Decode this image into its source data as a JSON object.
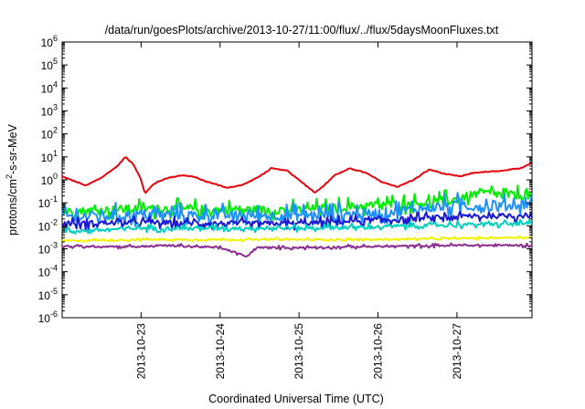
{
  "chart_data": {
    "type": "line",
    "title": "/data/run/goesPlots/archive/2013-10-27/11:00/flux/../flux/5daysMoonFluxes.txt",
    "xlabel": "Coordinated Universal Time (UTC)",
    "ylabel": {
      "base": "protons/cm",
      "sup": "2",
      "rest": "-s-sr-MeV"
    },
    "yscale": "log",
    "ylim": [
      -6,
      6
    ],
    "xlim": [
      0,
      5.95
    ],
    "y_ticks": [
      {
        "exp": 6,
        "base": "10",
        "sup": "6"
      },
      {
        "exp": 5,
        "base": "10",
        "sup": "5"
      },
      {
        "exp": 4,
        "base": "10",
        "sup": "4"
      },
      {
        "exp": 3,
        "base": "10",
        "sup": "3"
      },
      {
        "exp": 2,
        "base": "10",
        "sup": "2"
      },
      {
        "exp": 1,
        "base": "10",
        "sup": "1"
      },
      {
        "exp": 0,
        "base": "10",
        "sup": "0"
      },
      {
        "exp": -1,
        "base": "10",
        "sup": "-1"
      },
      {
        "exp": -2,
        "base": "10",
        "sup": "-2"
      },
      {
        "exp": -3,
        "base": "10",
        "sup": "-3"
      },
      {
        "exp": -4,
        "base": "10",
        "sup": "-4"
      },
      {
        "exp": -5,
        "base": "10",
        "sup": "-5"
      },
      {
        "exp": -6,
        "base": "10",
        "sup": "-6"
      }
    ],
    "x_ticks": [
      {
        "day": 1,
        "label": "2013-10-23"
      },
      {
        "day": 2,
        "label": "2013-10-24"
      },
      {
        "day": 3,
        "label": "2013-10-25"
      },
      {
        "day": 4,
        "label": "2013-10-26"
      },
      {
        "day": 5,
        "label": "2013-10-27"
      }
    ],
    "grid": false,
    "legend": "none",
    "series": [
      {
        "color": "#e8000b",
        "noise": 0.02,
        "points": [
          [
            0,
            0.15
          ],
          [
            0.15,
            -0.05
          ],
          [
            0.3,
            -0.25
          ],
          [
            0.5,
            0.1
          ],
          [
            0.7,
            0.6
          ],
          [
            0.8,
            1.0
          ],
          [
            0.9,
            0.7
          ],
          [
            1.0,
            0.0
          ],
          [
            1.05,
            -0.6
          ],
          [
            1.15,
            -0.2
          ],
          [
            1.3,
            0.05
          ],
          [
            1.5,
            0.2
          ],
          [
            1.65,
            0.15
          ],
          [
            1.85,
            -0.1
          ],
          [
            2.1,
            -0.35
          ],
          [
            2.3,
            -0.2
          ],
          [
            2.5,
            0.15
          ],
          [
            2.65,
            0.5
          ],
          [
            2.85,
            0.4
          ],
          [
            3.0,
            0.0
          ],
          [
            3.2,
            -0.55
          ],
          [
            3.3,
            -0.3
          ],
          [
            3.45,
            0.2
          ],
          [
            3.65,
            0.5
          ],
          [
            3.85,
            0.3
          ],
          [
            4.05,
            -0.1
          ],
          [
            4.25,
            -0.3
          ],
          [
            4.45,
            0.0
          ],
          [
            4.65,
            0.45
          ],
          [
            4.85,
            0.25
          ],
          [
            5.05,
            0.15
          ],
          [
            5.2,
            0.3
          ],
          [
            5.4,
            0.35
          ],
          [
            5.6,
            0.4
          ],
          [
            5.8,
            0.5
          ],
          [
            5.95,
            0.75
          ]
        ]
      },
      {
        "color": "#00ee00",
        "noise": 0.3,
        "points": [
          [
            0,
            -1.4
          ],
          [
            1.0,
            -1.25
          ],
          [
            2.0,
            -1.3
          ],
          [
            3.0,
            -1.3
          ],
          [
            4.0,
            -1.1
          ],
          [
            4.6,
            -1.0
          ],
          [
            5.0,
            -0.85
          ],
          [
            5.3,
            -0.55
          ],
          [
            5.6,
            -0.65
          ],
          [
            5.95,
            -0.7
          ]
        ]
      },
      {
        "color": "#1e90ff",
        "noise": 0.35,
        "points": [
          [
            0,
            -1.6
          ],
          [
            1.0,
            -1.5
          ],
          [
            2.0,
            -1.55
          ],
          [
            3.0,
            -1.55
          ],
          [
            4.0,
            -1.45
          ],
          [
            4.7,
            -1.2
          ],
          [
            5.0,
            -1.1
          ],
          [
            5.5,
            -1.2
          ],
          [
            5.95,
            -1.0
          ]
        ]
      },
      {
        "color": "#1a1ad6",
        "noise": 0.18,
        "points": [
          [
            0,
            -1.9
          ],
          [
            1.0,
            -1.85
          ],
          [
            2.0,
            -1.9
          ],
          [
            3.0,
            -1.9
          ],
          [
            4.0,
            -1.75
          ],
          [
            4.5,
            -1.7
          ],
          [
            5.0,
            -1.6
          ],
          [
            5.95,
            -1.55
          ]
        ]
      },
      {
        "color": "#00d0c0",
        "noise": 0.12,
        "points": [
          [
            0,
            -2.25
          ],
          [
            1.0,
            -2.1
          ],
          [
            2.0,
            -2.1
          ],
          [
            3.0,
            -2.1
          ],
          [
            4.0,
            -2.05
          ],
          [
            5.0,
            -1.95
          ],
          [
            5.95,
            -1.9
          ]
        ]
      },
      {
        "color": "#f2f200",
        "noise": 0.05,
        "points": [
          [
            0,
            -2.65
          ],
          [
            1.0,
            -2.6
          ],
          [
            2.0,
            -2.6
          ],
          [
            3.0,
            -2.6
          ],
          [
            4.0,
            -2.6
          ],
          [
            5.0,
            -2.55
          ],
          [
            5.95,
            -2.5
          ]
        ]
      },
      {
        "color": "#8b2d8f",
        "noise": 0.06,
        "points": [
          [
            0,
            -2.9
          ],
          [
            1.0,
            -2.9
          ],
          [
            1.3,
            -2.85
          ],
          [
            2.0,
            -2.95
          ],
          [
            2.35,
            -3.35
          ],
          [
            2.45,
            -2.95
          ],
          [
            3.0,
            -2.95
          ],
          [
            4.0,
            -2.9
          ],
          [
            5.0,
            -2.85
          ],
          [
            5.95,
            -2.85
          ]
        ]
      }
    ]
  }
}
